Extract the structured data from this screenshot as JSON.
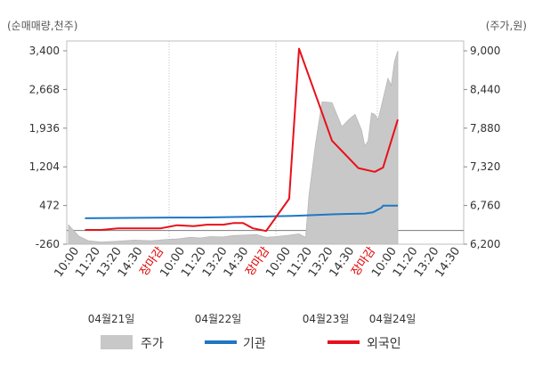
{
  "chart_data": {
    "type": "area+line",
    "left_unit": "(순매매량,천주)",
    "right_unit": "(주가,원)",
    "y_left": {
      "min": -260,
      "max": 3400,
      "ticks": [
        "3,400",
        "2,668",
        "1,936",
        "1,204",
        "472",
        "-260"
      ]
    },
    "y_right": {
      "min": 6200,
      "max": 9000,
      "ticks": [
        "9,000",
        "8,440",
        "7,880",
        "7,320",
        "6,760",
        "6,200"
      ]
    },
    "x_tick_labels": [
      "10:00",
      "11:20",
      "13:20",
      "14:30",
      "장마감",
      "10:00",
      "11:20",
      "13:20",
      "14:30",
      "장마감",
      "10:00",
      "11:20",
      "13:20",
      "14:30",
      "장마감",
      "10:00",
      "11:20",
      "13:20",
      "14:30"
    ],
    "x_tick_close_flags": [
      false,
      false,
      false,
      false,
      true,
      false,
      false,
      false,
      false,
      true,
      false,
      false,
      false,
      false,
      true,
      false,
      false,
      false,
      false
    ],
    "dates": [
      "04월21일",
      "04월22일",
      "04월23일",
      "04월24일"
    ],
    "legend": [
      {
        "label": "주가",
        "color": "#c8c8c8",
        "kind": "area"
      },
      {
        "label": "기관",
        "color": "#1f77c4",
        "kind": "line"
      },
      {
        "label": "외국인",
        "color": "#e8101a",
        "kind": "line"
      }
    ],
    "price_area": {
      "x": [
        0,
        3,
        6,
        10,
        14,
        20,
        25,
        30,
        33,
        37,
        40,
        43,
        47,
        50,
        53,
        57,
        60,
        63,
        67,
        70,
        72,
        73,
        75,
        77,
        80,
        83,
        85,
        87,
        89,
        90,
        91,
        92,
        93,
        94,
        95,
        96,
        97,
        98,
        99,
        100
      ],
      "values": [
        6480,
        6320,
        6250,
        6230,
        6240,
        6260,
        6250,
        6270,
        6275,
        6300,
        6290,
        6310,
        6305,
        6325,
        6330,
        6340,
        6300,
        6310,
        6330,
        6350,
        6300,
        6900,
        7650,
        8260,
        8250,
        7900,
        8000,
        8080,
        7850,
        7620,
        7700,
        8100,
        8080,
        8000,
        8200,
        8400,
        8600,
        8500,
        8850,
        9000
      ]
    },
    "institution": {
      "x": [
        5,
        30,
        40,
        60,
        68,
        70,
        80,
        90,
        92.5,
        95,
        95.5,
        100
      ],
      "values": [
        230,
        245,
        245,
        265,
        275,
        280,
        305,
        320,
        345,
        430,
        470,
        470
      ]
    },
    "foreign": {
      "x": [
        5,
        10,
        15,
        20,
        23,
        28,
        33,
        38,
        42,
        47,
        50,
        53,
        56,
        60,
        67,
        70,
        76,
        80,
        88,
        93,
        95.5,
        100
      ],
      "values": [
        10,
        10,
        40,
        40,
        40,
        40,
        100,
        80,
        110,
        110,
        140,
        140,
        40,
        -10,
        600,
        3440,
        2400,
        1700,
        1180,
        1110,
        1190,
        2100
      ]
    }
  }
}
